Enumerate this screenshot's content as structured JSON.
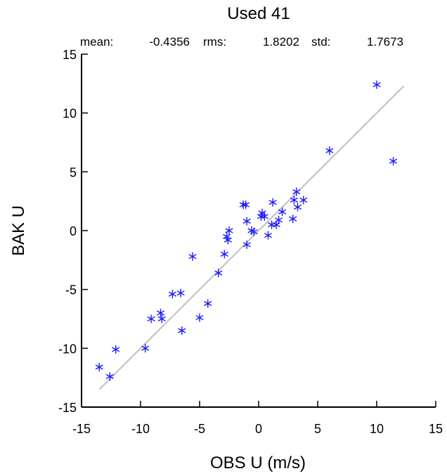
{
  "chart_data": {
    "type": "scatter",
    "title": "Used  41",
    "stats": {
      "mean_label": "mean:",
      "mean_value": "-0.4356",
      "rms_label": "rms:",
      "rms_value": "1.8202",
      "std_label": "std:",
      "std_value": "1.7673"
    },
    "xlabel": "OBS U  (m/s)",
    "ylabel": "BAK U",
    "xlim": [
      -15,
      15
    ],
    "ylim": [
      -15,
      15
    ],
    "xticks": [
      -15,
      -10,
      -5,
      0,
      5,
      10,
      15
    ],
    "yticks": [
      -15,
      -10,
      -5,
      0,
      5,
      10,
      15
    ],
    "marker": "asterisk",
    "marker_color": "#1a1aff",
    "fit_line_color": "#c0c0c0",
    "fit_line": {
      "x": [
        -13.5,
        12.3
      ],
      "y": [
        -13.5,
        12.3
      ]
    },
    "points": [
      {
        "x": -13.5,
        "y": -11.6
      },
      {
        "x": -12.6,
        "y": -12.4
      },
      {
        "x": -12.1,
        "y": -10.1
      },
      {
        "x": -9.6,
        "y": -10.0
      },
      {
        "x": -9.1,
        "y": -7.5
      },
      {
        "x": -8.3,
        "y": -7.0
      },
      {
        "x": -8.2,
        "y": -7.5
      },
      {
        "x": -7.3,
        "y": -5.4
      },
      {
        "x": -6.6,
        "y": -5.3
      },
      {
        "x": -6.5,
        "y": -8.5
      },
      {
        "x": -5.6,
        "y": -2.2
      },
      {
        "x": -5.0,
        "y": -7.4
      },
      {
        "x": -4.3,
        "y": -6.2
      },
      {
        "x": -3.4,
        "y": -3.6
      },
      {
        "x": -2.9,
        "y": -2.0
      },
      {
        "x": -2.7,
        "y": -0.5
      },
      {
        "x": -2.6,
        "y": -0.8
      },
      {
        "x": -2.5,
        "y": 0.0
      },
      {
        "x": -1.3,
        "y": 2.2
      },
      {
        "x": -1.1,
        "y": 2.2
      },
      {
        "x": -1.0,
        "y": -1.2
      },
      {
        "x": -1.0,
        "y": 0.8
      },
      {
        "x": -0.6,
        "y": 0.0
      },
      {
        "x": -0.4,
        "y": -0.1
      },
      {
        "x": 0.2,
        "y": 1.2
      },
      {
        "x": 0.3,
        "y": 1.5
      },
      {
        "x": 0.5,
        "y": 1.2
      },
      {
        "x": 0.8,
        "y": -0.4
      },
      {
        "x": 1.1,
        "y": 0.5
      },
      {
        "x": 1.2,
        "y": 2.4
      },
      {
        "x": 1.5,
        "y": 0.5
      },
      {
        "x": 1.7,
        "y": 0.9
      },
      {
        "x": 2.0,
        "y": 1.6
      },
      {
        "x": 2.9,
        "y": 1.0
      },
      {
        "x": 3.0,
        "y": 2.6
      },
      {
        "x": 3.2,
        "y": 3.3
      },
      {
        "x": 3.3,
        "y": 2.0
      },
      {
        "x": 3.8,
        "y": 2.6
      },
      {
        "x": 6.0,
        "y": 6.8
      },
      {
        "x": 10.0,
        "y": 12.4
      },
      {
        "x": 11.4,
        "y": 5.9
      }
    ]
  }
}
